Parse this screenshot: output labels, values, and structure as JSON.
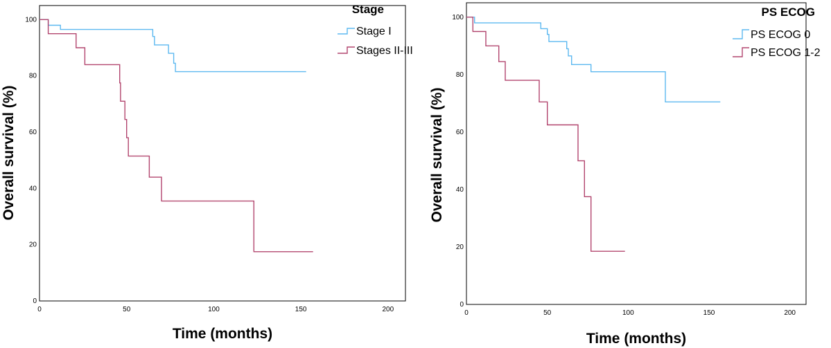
{
  "chart_data": [
    {
      "type": "line",
      "step": true,
      "xlabel": "Time (months)",
      "ylabel": "Overall survival (%)",
      "xlim": [
        0,
        210
      ],
      "ylim": [
        0,
        105
      ],
      "xticks": [
        0,
        50,
        100,
        150,
        200
      ],
      "yticks": [
        0,
        20,
        40,
        60,
        80,
        100
      ],
      "legend_title": "Stage",
      "legend_position": "top-right",
      "series": [
        {
          "name": "Stage I",
          "color": "#5bb8f0",
          "points": [
            [
              0,
              100
            ],
            [
              5,
              100
            ],
            [
              5,
              98
            ],
            [
              12,
              98
            ],
            [
              12,
              96.5
            ],
            [
              65,
              96.5
            ],
            [
              65,
              94
            ],
            [
              66,
              94
            ],
            [
              66,
              91
            ],
            [
              74,
              91
            ],
            [
              74,
              88
            ],
            [
              77,
              88
            ],
            [
              77,
              84.5
            ],
            [
              78,
              84.5
            ],
            [
              78,
              81.5
            ],
            [
              153,
              81.5
            ]
          ]
        },
        {
          "name": "Stages II-III",
          "color": "#b2456e",
          "points": [
            [
              0,
              100
            ],
            [
              5,
              100
            ],
            [
              5,
              95
            ],
            [
              21,
              95
            ],
            [
              21,
              90
            ],
            [
              26,
              90
            ],
            [
              26,
              84
            ],
            [
              46,
              84
            ],
            [
              46,
              77.5
            ],
            [
              46.5,
              77.5
            ],
            [
              46.5,
              71
            ],
            [
              49,
              71
            ],
            [
              49,
              64.5
            ],
            [
              50,
              64.5
            ],
            [
              50,
              58
            ],
            [
              51,
              58
            ],
            [
              51,
              51.5
            ],
            [
              63,
              51.5
            ],
            [
              63,
              44
            ],
            [
              70,
              44
            ],
            [
              70,
              35.5
            ],
            [
              123,
              35.5
            ],
            [
              123,
              17.5
            ],
            [
              157,
              17.5
            ]
          ]
        }
      ]
    },
    {
      "type": "line",
      "step": true,
      "xlabel": "Time (months)",
      "ylabel": "Overall survival (%)",
      "xlim": [
        0,
        210
      ],
      "ylim": [
        0,
        105
      ],
      "xticks": [
        0,
        50,
        100,
        150,
        200
      ],
      "yticks": [
        0,
        20,
        40,
        60,
        80,
        100
      ],
      "legend_title": "PS ECOG",
      "legend_position": "top-right",
      "series": [
        {
          "name": "PS ECOG 0",
          "color": "#5bb8f0",
          "points": [
            [
              0,
              100
            ],
            [
              5,
              100
            ],
            [
              5,
              98
            ],
            [
              46,
              98
            ],
            [
              46,
              96
            ],
            [
              50,
              96
            ],
            [
              50,
              94
            ],
            [
              51,
              94
            ],
            [
              51,
              91.5
            ],
            [
              62,
              91.5
            ],
            [
              62,
              89
            ],
            [
              63,
              89
            ],
            [
              63,
              86.5
            ],
            [
              65,
              86.5
            ],
            [
              65,
              83.5
            ],
            [
              77,
              83.5
            ],
            [
              77,
              81
            ],
            [
              123,
              81
            ],
            [
              123,
              70.5
            ],
            [
              157,
              70.5
            ]
          ]
        },
        {
          "name": "PS ECOG 1-2",
          "color": "#b2456e",
          "points": [
            [
              0,
              100
            ],
            [
              4,
              100
            ],
            [
              4,
              95
            ],
            [
              12,
              95
            ],
            [
              12,
              90
            ],
            [
              20,
              90
            ],
            [
              20,
              84.5
            ],
            [
              24,
              84.5
            ],
            [
              24,
              78
            ],
            [
              45,
              78
            ],
            [
              45,
              70.5
            ],
            [
              50,
              70.5
            ],
            [
              50,
              62.5
            ],
            [
              69,
              62.5
            ],
            [
              69,
              50
            ],
            [
              73,
              50
            ],
            [
              73,
              37.5
            ],
            [
              77,
              37.5
            ],
            [
              77,
              18.5
            ],
            [
              98,
              18.5
            ]
          ]
        }
      ]
    }
  ]
}
